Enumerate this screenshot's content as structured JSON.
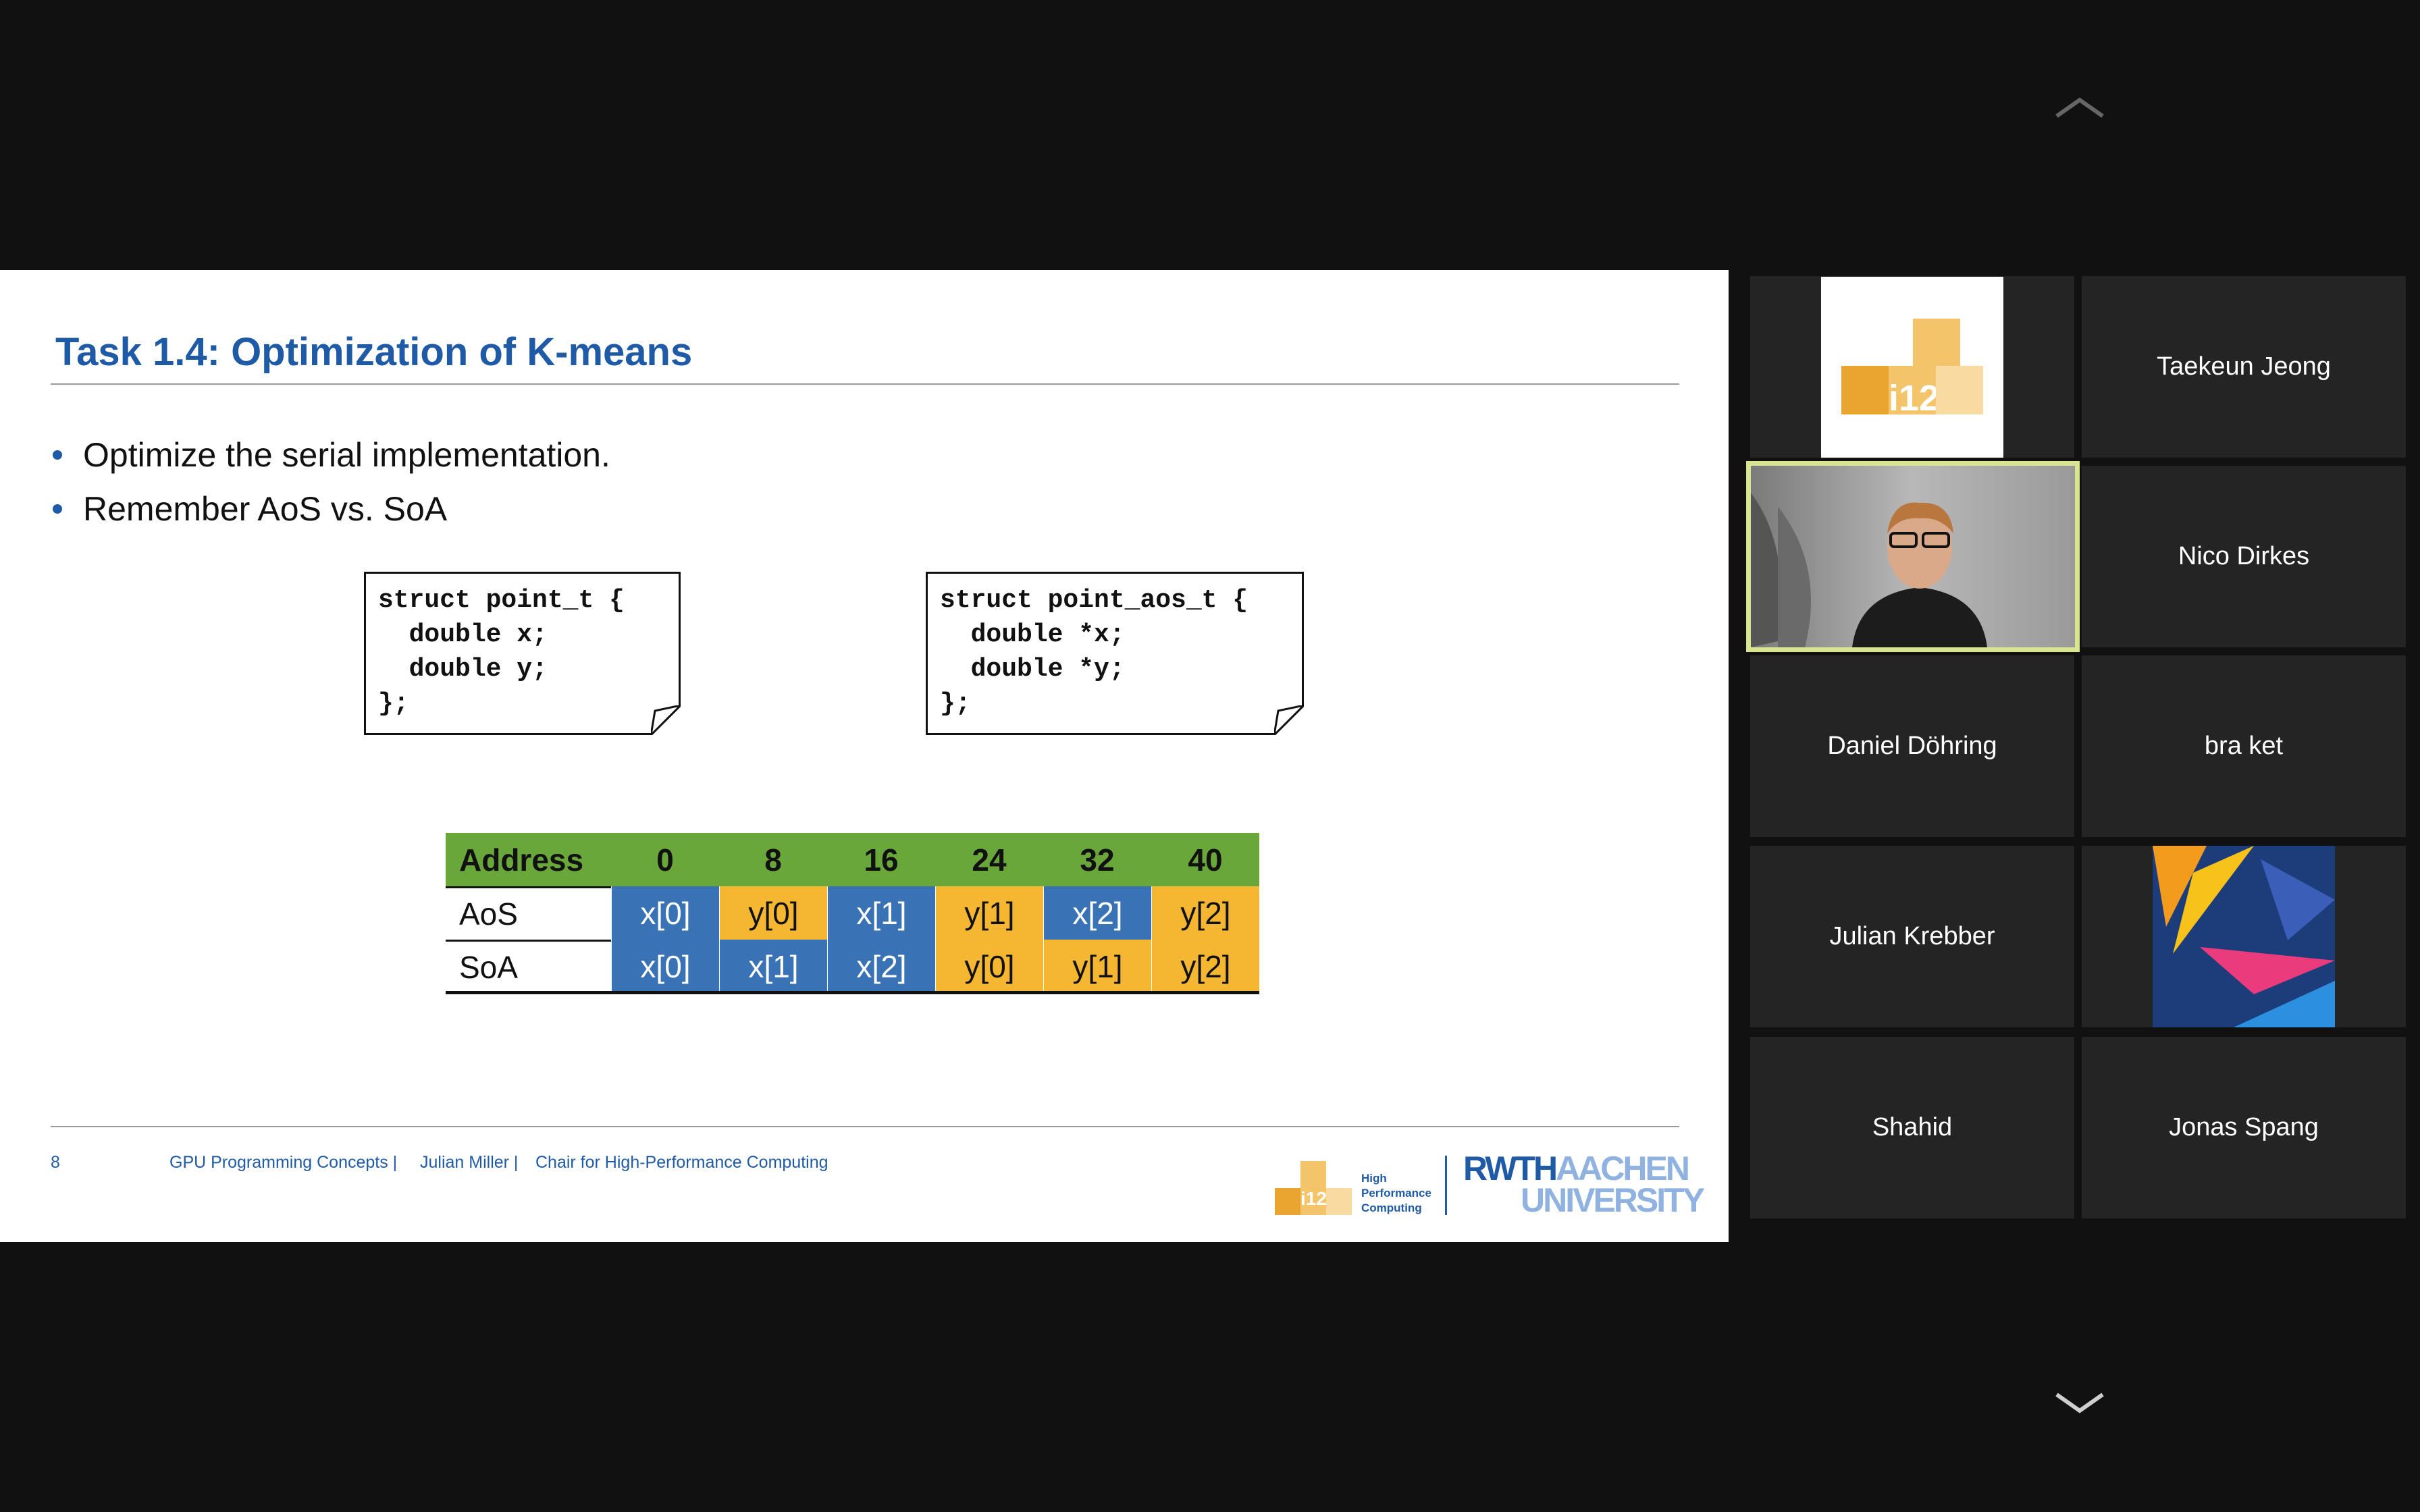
{
  "slide": {
    "title": "Task 1.4: Optimization of K-means",
    "bullets": [
      "Optimize the serial implementation.",
      "Remember AoS vs. SoA"
    ],
    "code_blocks": [
      [
        "struct point_t {",
        "  double x;",
        "  double y;",
        "};"
      ],
      [
        "struct point_aos_t {",
        "  double *x;",
        "  double *y;",
        "};"
      ]
    ],
    "table": {
      "header": [
        "Address",
        "0",
        "8",
        "16",
        "24",
        "32",
        "40"
      ],
      "rows": [
        [
          "AoS",
          "x[0]",
          "y[0]",
          "x[1]",
          "y[1]",
          "x[2]",
          "y[2]"
        ],
        [
          "SoA",
          "x[0]",
          "x[1]",
          "x[2]",
          "y[0]",
          "y[1]",
          "y[2]"
        ]
      ]
    },
    "footer": {
      "page": "8",
      "course": "GPU Programming Concepts |",
      "presenter": "Julian Miller |",
      "chair": "Chair for High-Performance Computing"
    },
    "logo": {
      "i12": "i12",
      "hpc": [
        "High",
        "Performance",
        "Computing"
      ],
      "rwth": "RWTH",
      "aachen": "AACHEN",
      "university": "UNIVERSITY"
    }
  },
  "participants": [
    "Taekeun Jeong",
    "Nico Dirkes",
    "Daniel Döhring",
    "bra ket",
    "Julian Krebber",
    "Shahid",
    "Jonas Spang"
  ],
  "logo_tile": "i12"
}
